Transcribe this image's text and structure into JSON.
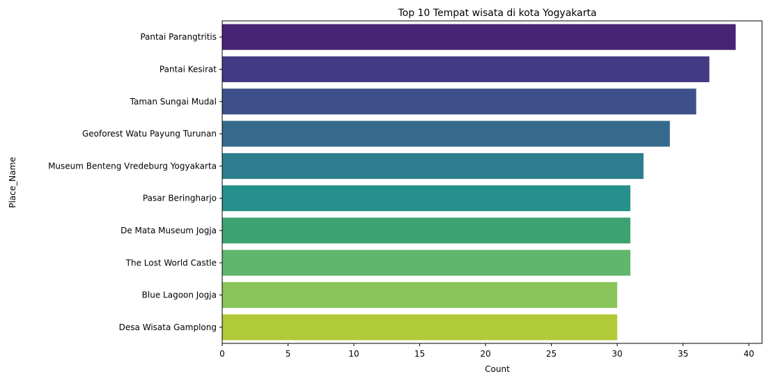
{
  "chart_data": {
    "type": "bar",
    "orientation": "horizontal",
    "title": "Top 10 Tempat wisata di kota Yogyakarta",
    "xlabel": "Count",
    "ylabel": "Place_Name",
    "categories": [
      "Pantai Parangtritis",
      "Pantai Kesirat",
      "Taman Sungai Mudal",
      "Geoforest Watu Payung Turunan",
      "Museum Benteng Vredeburg Yogyakarta",
      "Pasar Beringharjo",
      "De Mata Museum Jogja",
      "The Lost World Castle",
      "Blue Lagoon Jogja",
      "Desa Wisata Gamplong"
    ],
    "values": [
      39,
      37,
      36,
      34,
      32,
      31,
      31,
      31,
      30,
      30
    ],
    "colors": [
      "#482475",
      "#443a83",
      "#3e5089",
      "#366a8c",
      "#2c7e8e",
      "#25908c",
      "#3da271",
      "#60b66d",
      "#88c45a",
      "#b1ca37"
    ],
    "xlim": [
      0,
      41
    ],
    "xticks": [
      0,
      5,
      10,
      15,
      20,
      25,
      30,
      35,
      40
    ],
    "grid": false,
    "legend": "none"
  }
}
